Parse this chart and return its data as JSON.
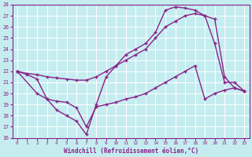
{
  "xlabel": "Windchill (Refroidissement éolien,°C)",
  "xlim": [
    -0.5,
    23.5
  ],
  "ylim": [
    16,
    28
  ],
  "xticks": [
    0,
    1,
    2,
    3,
    4,
    5,
    6,
    7,
    8,
    9,
    10,
    11,
    12,
    13,
    14,
    15,
    16,
    17,
    18,
    19,
    20,
    21,
    22,
    23
  ],
  "yticks": [
    16,
    17,
    18,
    19,
    20,
    21,
    22,
    23,
    24,
    25,
    26,
    27,
    28
  ],
  "bg_color": "#c5edf0",
  "grid_color": "#aadddf",
  "line_color": "#882288",
  "line1_x": [
    0,
    1,
    2,
    3,
    4,
    5,
    6,
    7,
    8,
    9,
    10,
    11,
    12,
    13,
    14,
    15,
    16,
    17,
    18,
    19,
    20,
    21,
    22,
    23
  ],
  "line1_y": [
    22,
    21.8,
    21.7,
    21.5,
    21.4,
    21.3,
    21.2,
    21.2,
    21.5,
    22.0,
    22.5,
    23.0,
    23.5,
    24.0,
    25.0,
    26.0,
    26.5,
    27.0,
    27.2,
    27.0,
    26.7,
    21.5,
    20.5,
    20.2
  ],
  "line2_x": [
    0,
    1,
    2,
    3,
    4,
    5,
    6,
    7,
    8,
    9,
    10,
    11,
    12,
    13,
    14,
    15,
    16,
    17,
    18,
    19,
    20,
    21,
    22,
    23
  ],
  "line2_y": [
    22,
    21.7,
    21.3,
    19.5,
    19.3,
    19.2,
    18.7,
    17.0,
    18.8,
    19.0,
    19.2,
    19.5,
    19.7,
    20.0,
    20.5,
    21.0,
    21.5,
    22.0,
    22.5,
    19.5,
    20.0,
    20.3,
    20.5,
    20.2
  ],
  "line3_x": [
    0,
    2,
    3,
    4,
    5,
    6,
    7,
    8,
    9,
    10,
    11,
    12,
    13,
    14,
    15,
    16,
    17,
    18,
    19,
    20,
    21,
    22,
    23
  ],
  "line3_y": [
    22,
    20.0,
    19.5,
    18.5,
    18.0,
    17.5,
    16.3,
    19.0,
    21.5,
    22.5,
    23.5,
    24.0,
    24.5,
    25.5,
    27.5,
    27.8,
    27.7,
    27.5,
    27.0,
    24.5,
    21.0,
    21.0,
    20.2
  ]
}
